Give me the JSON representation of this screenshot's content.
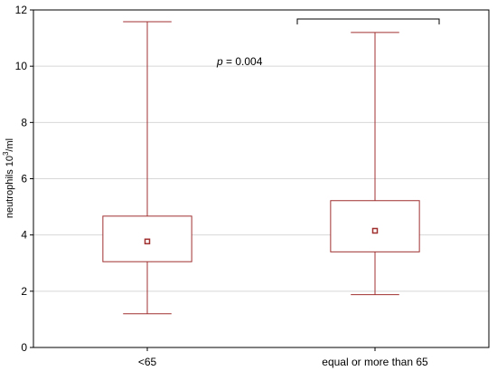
{
  "chart_data": {
    "type": "box",
    "ylabel_base": "neutrophils 10",
    "ylabel_exp": "3",
    "ylabel_unit": "/ml",
    "ylim": [
      0,
      12
    ],
    "yticks": [
      "0",
      "2",
      "4",
      "6",
      "8",
      "10",
      "12"
    ],
    "grid": true,
    "categories": [
      "<65",
      "equal or more than 65"
    ],
    "boxes": [
      {
        "category": "<65",
        "min": 1.2,
        "q1": 3.05,
        "median": 3.77,
        "q3": 4.67,
        "max": 11.58
      },
      {
        "category": "equal or more than 65",
        "min": 1.88,
        "q1": 3.4,
        "median": 4.15,
        "q3": 5.22,
        "max": 11.2
      }
    ],
    "annotation": {
      "p_symbol": "p",
      "p_rest": " = 0.004"
    },
    "colors": {
      "box": "#a03030",
      "axis": "#000000",
      "grid": "#d8d8d8"
    }
  }
}
